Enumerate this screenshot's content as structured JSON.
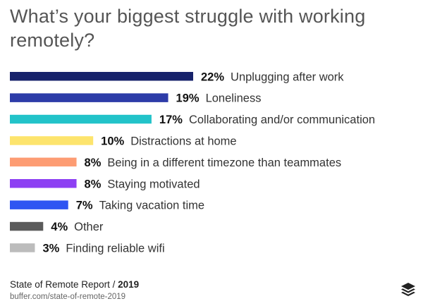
{
  "chart_data": {
    "type": "bar",
    "orientation": "horizontal",
    "title": "What’s your biggest struggle with working remotely?",
    "categories": [
      "Unplugging after work",
      "Loneliness",
      "Collaborating and/or communication",
      "Distractions at home",
      "Being in a different timezone than teammates",
      "Staying motivated",
      "Taking vacation time",
      "Other",
      "Finding reliable wifi"
    ],
    "values": [
      22,
      19,
      17,
      10,
      8,
      8,
      7,
      4,
      3
    ],
    "value_labels": [
      "22%",
      "19%",
      "17%",
      "10%",
      "8%",
      "8%",
      "7%",
      "4%",
      "3%"
    ],
    "unit": "%",
    "colors": [
      "#17226b",
      "#2d3ca8",
      "#22c3c9",
      "#fde46d",
      "#fd9c73",
      "#8d3ff3",
      "#2f55f2",
      "#5b5b5b",
      "#bcbcbc"
    ],
    "xlim": [
      0,
      22
    ],
    "grid": false,
    "legend": "none"
  },
  "footer": {
    "source_label": "State of Remote Report / ",
    "source_year": "2019",
    "url": "buffer.com/state-of-remote-2019"
  },
  "logo": {
    "icon": "buffer-stack-icon",
    "color": "#222222"
  }
}
